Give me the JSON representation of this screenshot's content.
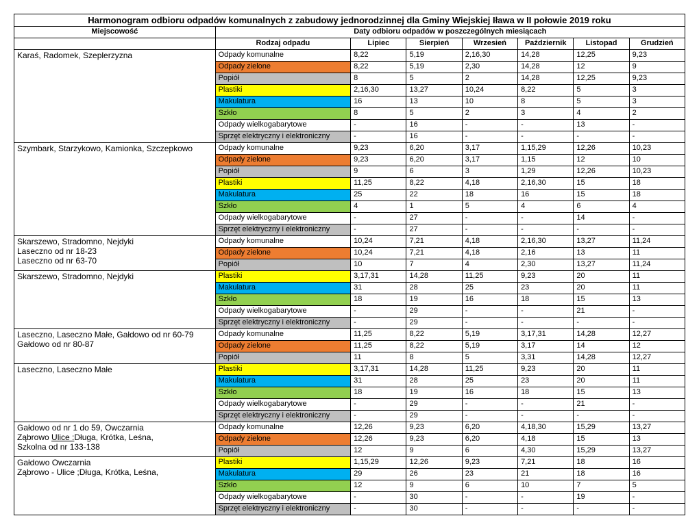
{
  "title": "Harmonogram odbioru odpadów komunalnych z zabudowy jednorodzinnej dla Gminy Wiejskiej Iława w II połowie 2019 roku",
  "h_loc": "Miejscowość",
  "h_dates": "Daty odbioru odpadów w poszczególnych miesiącach",
  "h_type": "Rodzaj odpadu",
  "months": [
    "Lipiec",
    "Sierpień",
    "Wrzesień",
    "Październik",
    "Listopad",
    "Grudzień"
  ],
  "waste_types": {
    "komunalne": "Odpady komunalne",
    "zielone": "Odpady zielone",
    "popiol": "Popiół",
    "plastiki": "Plastiki",
    "makulatura": "Makulatura",
    "szklo": "Szkło",
    "wielko": "Odpady wielkogabarytowe",
    "elektro": "Sprzęt elektryczny i elektroniczny"
  },
  "colors": {
    "komunalne": "",
    "zielone": "orange",
    "popiol": "gray",
    "plastiki": "yellow",
    "makulatura": "blue",
    "szklo": "green",
    "wielko": "",
    "elektro": "gray"
  },
  "groups": [
    {
      "locLines": [
        "Karaś, Radomek, Szeplerzyzna"
      ],
      "rows": [
        {
          "t": "komunalne",
          "v": [
            "8,22",
            "5,19",
            "2,16,30",
            "14,28",
            "12,25",
            "9,23"
          ]
        },
        {
          "t": "zielone",
          "v": [
            "8,22",
            "5,19",
            "2,30",
            "14,28",
            "12",
            "9"
          ]
        },
        {
          "t": "popiol",
          "v": [
            "8",
            "5",
            "2",
            "14,28",
            "12,25",
            "9,23"
          ]
        },
        {
          "t": "plastiki",
          "v": [
            "2,16,30",
            "13,27",
            "10,24",
            "8,22",
            "5",
            "3"
          ]
        },
        {
          "t": "makulatura",
          "v": [
            "16",
            "13",
            "10",
            "8",
            "5",
            "3"
          ]
        },
        {
          "t": "szklo",
          "v": [
            "8",
            "5",
            "2",
            "3",
            "4",
            "2"
          ]
        },
        {
          "t": "wielko",
          "v": [
            "-",
            "16",
            "-",
            "-",
            "13",
            "-"
          ]
        },
        {
          "t": "elektro",
          "v": [
            "-",
            "16",
            "-",
            "-",
            "-",
            "-"
          ]
        }
      ]
    },
    {
      "locLines": [
        "Szymbark, Starzykowo, Kamionka, Szczepkowo"
      ],
      "rows": [
        {
          "t": "komunalne",
          "v": [
            "9,23",
            "6,20",
            "3,17",
            "1,15,29",
            "12,26",
            "10,23"
          ]
        },
        {
          "t": "zielone",
          "v": [
            "9,23",
            "6,20",
            "3,17",
            "1,15",
            "12",
            "10"
          ]
        },
        {
          "t": "popiol",
          "v": [
            "9",
            "6",
            "3",
            "1,29",
            "12,26",
            "10,23"
          ]
        },
        {
          "t": "plastiki",
          "v": [
            "11,25",
            "8,22",
            "4,18",
            "2,16,30",
            "15",
            "18"
          ]
        },
        {
          "t": "makulatura",
          "v": [
            "25",
            "22",
            "18",
            "16",
            "15",
            "18"
          ]
        },
        {
          "t": "szklo",
          "v": [
            "4",
            "1",
            "5",
            "4",
            "6",
            "4"
          ]
        },
        {
          "t": "wielko",
          "v": [
            "-",
            "27",
            "-",
            "-",
            "14",
            "-"
          ]
        },
        {
          "t": "elektro",
          "v": [
            "-",
            "27",
            "-",
            "-",
            "-",
            "-"
          ]
        }
      ]
    },
    {
      "locLines": [
        "Skarszewo, Stradomno,  Nejdyki",
        "Laseczno  od nr 18-23",
        "Laseczno od nr  63-70"
      ],
      "rows": [
        {
          "t": "komunalne",
          "v": [
            "10,24",
            "7,21",
            "4,18",
            "2,16,30",
            "13,27",
            "11,24"
          ]
        },
        {
          "t": "zielone",
          "v": [
            "10,24",
            "7,21",
            "4,18",
            "2,16",
            "13",
            "11"
          ]
        },
        {
          "t": "popiol",
          "v": [
            "10",
            "7",
            "4",
            "2,30",
            "13,27",
            "11,24"
          ]
        }
      ]
    },
    {
      "locLines": [
        "Skarszewo, Stradomno,  Nejdyki"
      ],
      "rows": [
        {
          "t": "plastiki",
          "v": [
            "3,17,31",
            "14,28",
            "11,25",
            "9,23",
            "20",
            "11"
          ]
        },
        {
          "t": "makulatura",
          "v": [
            "31",
            "28",
            "25",
            "23",
            "20",
            "11"
          ]
        },
        {
          "t": "szklo",
          "v": [
            "18",
            "19",
            "16",
            "18",
            "15",
            "13"
          ]
        },
        {
          "t": "wielko",
          "v": [
            "-",
            "29",
            "-",
            "-",
            "21",
            "-"
          ]
        },
        {
          "t": "elektro",
          "v": [
            "-",
            "29",
            "-",
            "-",
            "-",
            "-"
          ]
        }
      ]
    },
    {
      "locLines": [
        "Laseczno, Laseczno Małe, Gałdowo od nr 60-79",
        "Gałdowo  od nr 80-87"
      ],
      "rows": [
        {
          "t": "komunalne",
          "v": [
            "11,25",
            "8,22",
            "5,19",
            "3,17,31",
            "14,28",
            "12,27"
          ]
        },
        {
          "t": "zielone",
          "v": [
            "11,25",
            "8,22",
            "5,19",
            "3,17",
            "14",
            "12"
          ]
        },
        {
          "t": "popiol",
          "v": [
            "11",
            "8",
            "5",
            "3,31",
            "14,28",
            "12,27"
          ]
        }
      ]
    },
    {
      "locLines": [
        "Laseczno, Laseczno Małe"
      ],
      "rows": [
        {
          "t": "plastiki",
          "v": [
            "3,17,31",
            "14,28",
            "11,25",
            "9,23",
            "20",
            "11"
          ]
        },
        {
          "t": "makulatura",
          "v": [
            "31",
            "28",
            "25",
            "23",
            "20",
            "11"
          ]
        },
        {
          "t": "szklo",
          "v": [
            "18",
            "19",
            "16",
            "18",
            "15",
            "13"
          ]
        },
        {
          "t": "wielko",
          "v": [
            "-",
            "29",
            "-",
            "-",
            "21",
            "-"
          ]
        },
        {
          "t": "elektro",
          "v": [
            "-",
            "29",
            "-",
            "-",
            "-",
            "-"
          ]
        }
      ]
    },
    {
      "locLines": [
        "Gałdowo od nr 1 do 59,   Owczarnia",
        "Ząbrowo  <u>Ulice :</u>Długa, Krótka, Leśna,",
        "Szkolna  od nr 133-138"
      ],
      "rows": [
        {
          "t": "komunalne",
          "v": [
            "12,26",
            "9,23",
            "6,20",
            "4,18,30",
            "15,29",
            "13,27"
          ]
        },
        {
          "t": "zielone",
          "v": [
            "12,26",
            "9,23",
            "6,20",
            "4,18",
            "15",
            "13"
          ]
        },
        {
          "t": "popiol",
          "v": [
            "12",
            "9",
            "6",
            "4,30",
            "15,29",
            "13,27"
          ]
        }
      ]
    },
    {
      "locLines": [
        "Gałdowo  Owczarnia",
        "Ząbrowo -  Ulice ;Długa, Krótka, Leśna,"
      ],
      "rows": [
        {
          "t": "plastiki",
          "v": [
            "1,15,29",
            "12,26",
            "9,23",
            "7,21",
            "18",
            "16"
          ]
        },
        {
          "t": "makulatura",
          "v": [
            "29",
            "26",
            "23",
            "21",
            "18",
            "16"
          ]
        },
        {
          "t": "szklo",
          "v": [
            "12",
            "9",
            "6",
            "10",
            "7",
            "5"
          ]
        },
        {
          "t": "wielko",
          "v": [
            "-",
            "30",
            "-",
            "-",
            "19",
            "-"
          ]
        },
        {
          "t": "elektro",
          "v": [
            "-",
            "30",
            "-",
            "-",
            "-",
            "-"
          ]
        }
      ]
    }
  ]
}
